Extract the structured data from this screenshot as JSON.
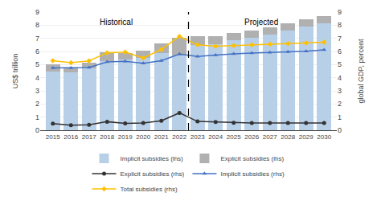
{
  "chart_data": {
    "type": "bar",
    "x": [
      2015,
      2016,
      2017,
      2018,
      2019,
      2020,
      2021,
      2022,
      2023,
      2024,
      2025,
      2026,
      2027,
      2028,
      2029,
      2030
    ],
    "stacked": true,
    "series": [
      {
        "name": "Implicit subsidies (lhs)",
        "type": "bar",
        "axis": "y",
        "color": "#b8cfe8",
        "values": [
          4.5,
          4.38,
          4.72,
          5.25,
          5.38,
          5.5,
          5.88,
          5.7,
          6.5,
          6.55,
          6.85,
          7.05,
          7.3,
          7.6,
          7.9,
          8.15
        ]
      },
      {
        "name": "Explicit subsidies (lhs)",
        "type": "bar",
        "axis": "y",
        "color": "#b0b0b0",
        "values": [
          0.5,
          0.38,
          0.42,
          0.68,
          0.52,
          0.58,
          0.72,
          1.35,
          0.68,
          0.63,
          0.58,
          0.55,
          0.55,
          0.55,
          0.55,
          0.55
        ]
      },
      {
        "name": "Explicit subsidies (rhs)",
        "type": "line",
        "axis": "y2",
        "color": "#333333",
        "marker": "circle",
        "values": [
          0.5,
          0.38,
          0.42,
          0.65,
          0.52,
          0.55,
          0.72,
          1.32,
          0.67,
          0.62,
          0.57,
          0.55,
          0.55,
          0.55,
          0.55,
          0.55
        ]
      },
      {
        "name": "Implicit subsidies (rhs)",
        "type": "line",
        "axis": "y2",
        "color": "#4472c4",
        "marker": "triangle-up",
        "values": [
          4.75,
          4.75,
          4.78,
          5.2,
          5.25,
          5.1,
          5.3,
          5.8,
          5.62,
          5.72,
          5.82,
          5.87,
          5.92,
          5.97,
          6.02,
          6.12
        ]
      },
      {
        "name": "Total subsidies (rhs)",
        "type": "line",
        "axis": "y2",
        "color": "#ffc000",
        "marker": "diamond",
        "values": [
          5.3,
          5.15,
          5.28,
          5.9,
          5.95,
          5.5,
          6.15,
          7.15,
          6.5,
          6.4,
          6.45,
          6.5,
          6.55,
          6.6,
          6.65,
          6.7
        ]
      }
    ],
    "xlim": [
      2014.3,
      2030.7
    ],
    "xticks": [
      2015,
      2016,
      2017,
      2018,
      2019,
      2020,
      2021,
      2022,
      2023,
      2024,
      2025,
      2026,
      2027,
      2028,
      2029,
      2030
    ],
    "ylabel": "US$ trillion",
    "ylim": [
      0,
      9
    ],
    "yticks": [
      0,
      1,
      2,
      3,
      4,
      5,
      6,
      7,
      8,
      9
    ],
    "y2label": "global GDP, percent",
    "y2lim": [
      0,
      9
    ],
    "y2ticks": [
      0,
      1,
      2,
      3,
      4,
      5,
      6,
      7,
      8,
      9
    ],
    "vlines": [
      {
        "x": 2022.5,
        "color": "#000000",
        "line_style": "dashed"
      }
    ],
    "annotations": [
      {
        "text": "Historical",
        "x": 2018.5,
        "y": 8.7
      },
      {
        "text": "Projected",
        "x": 2026.5,
        "y": 8.7
      }
    ],
    "grid": true,
    "legend": "bottom"
  }
}
